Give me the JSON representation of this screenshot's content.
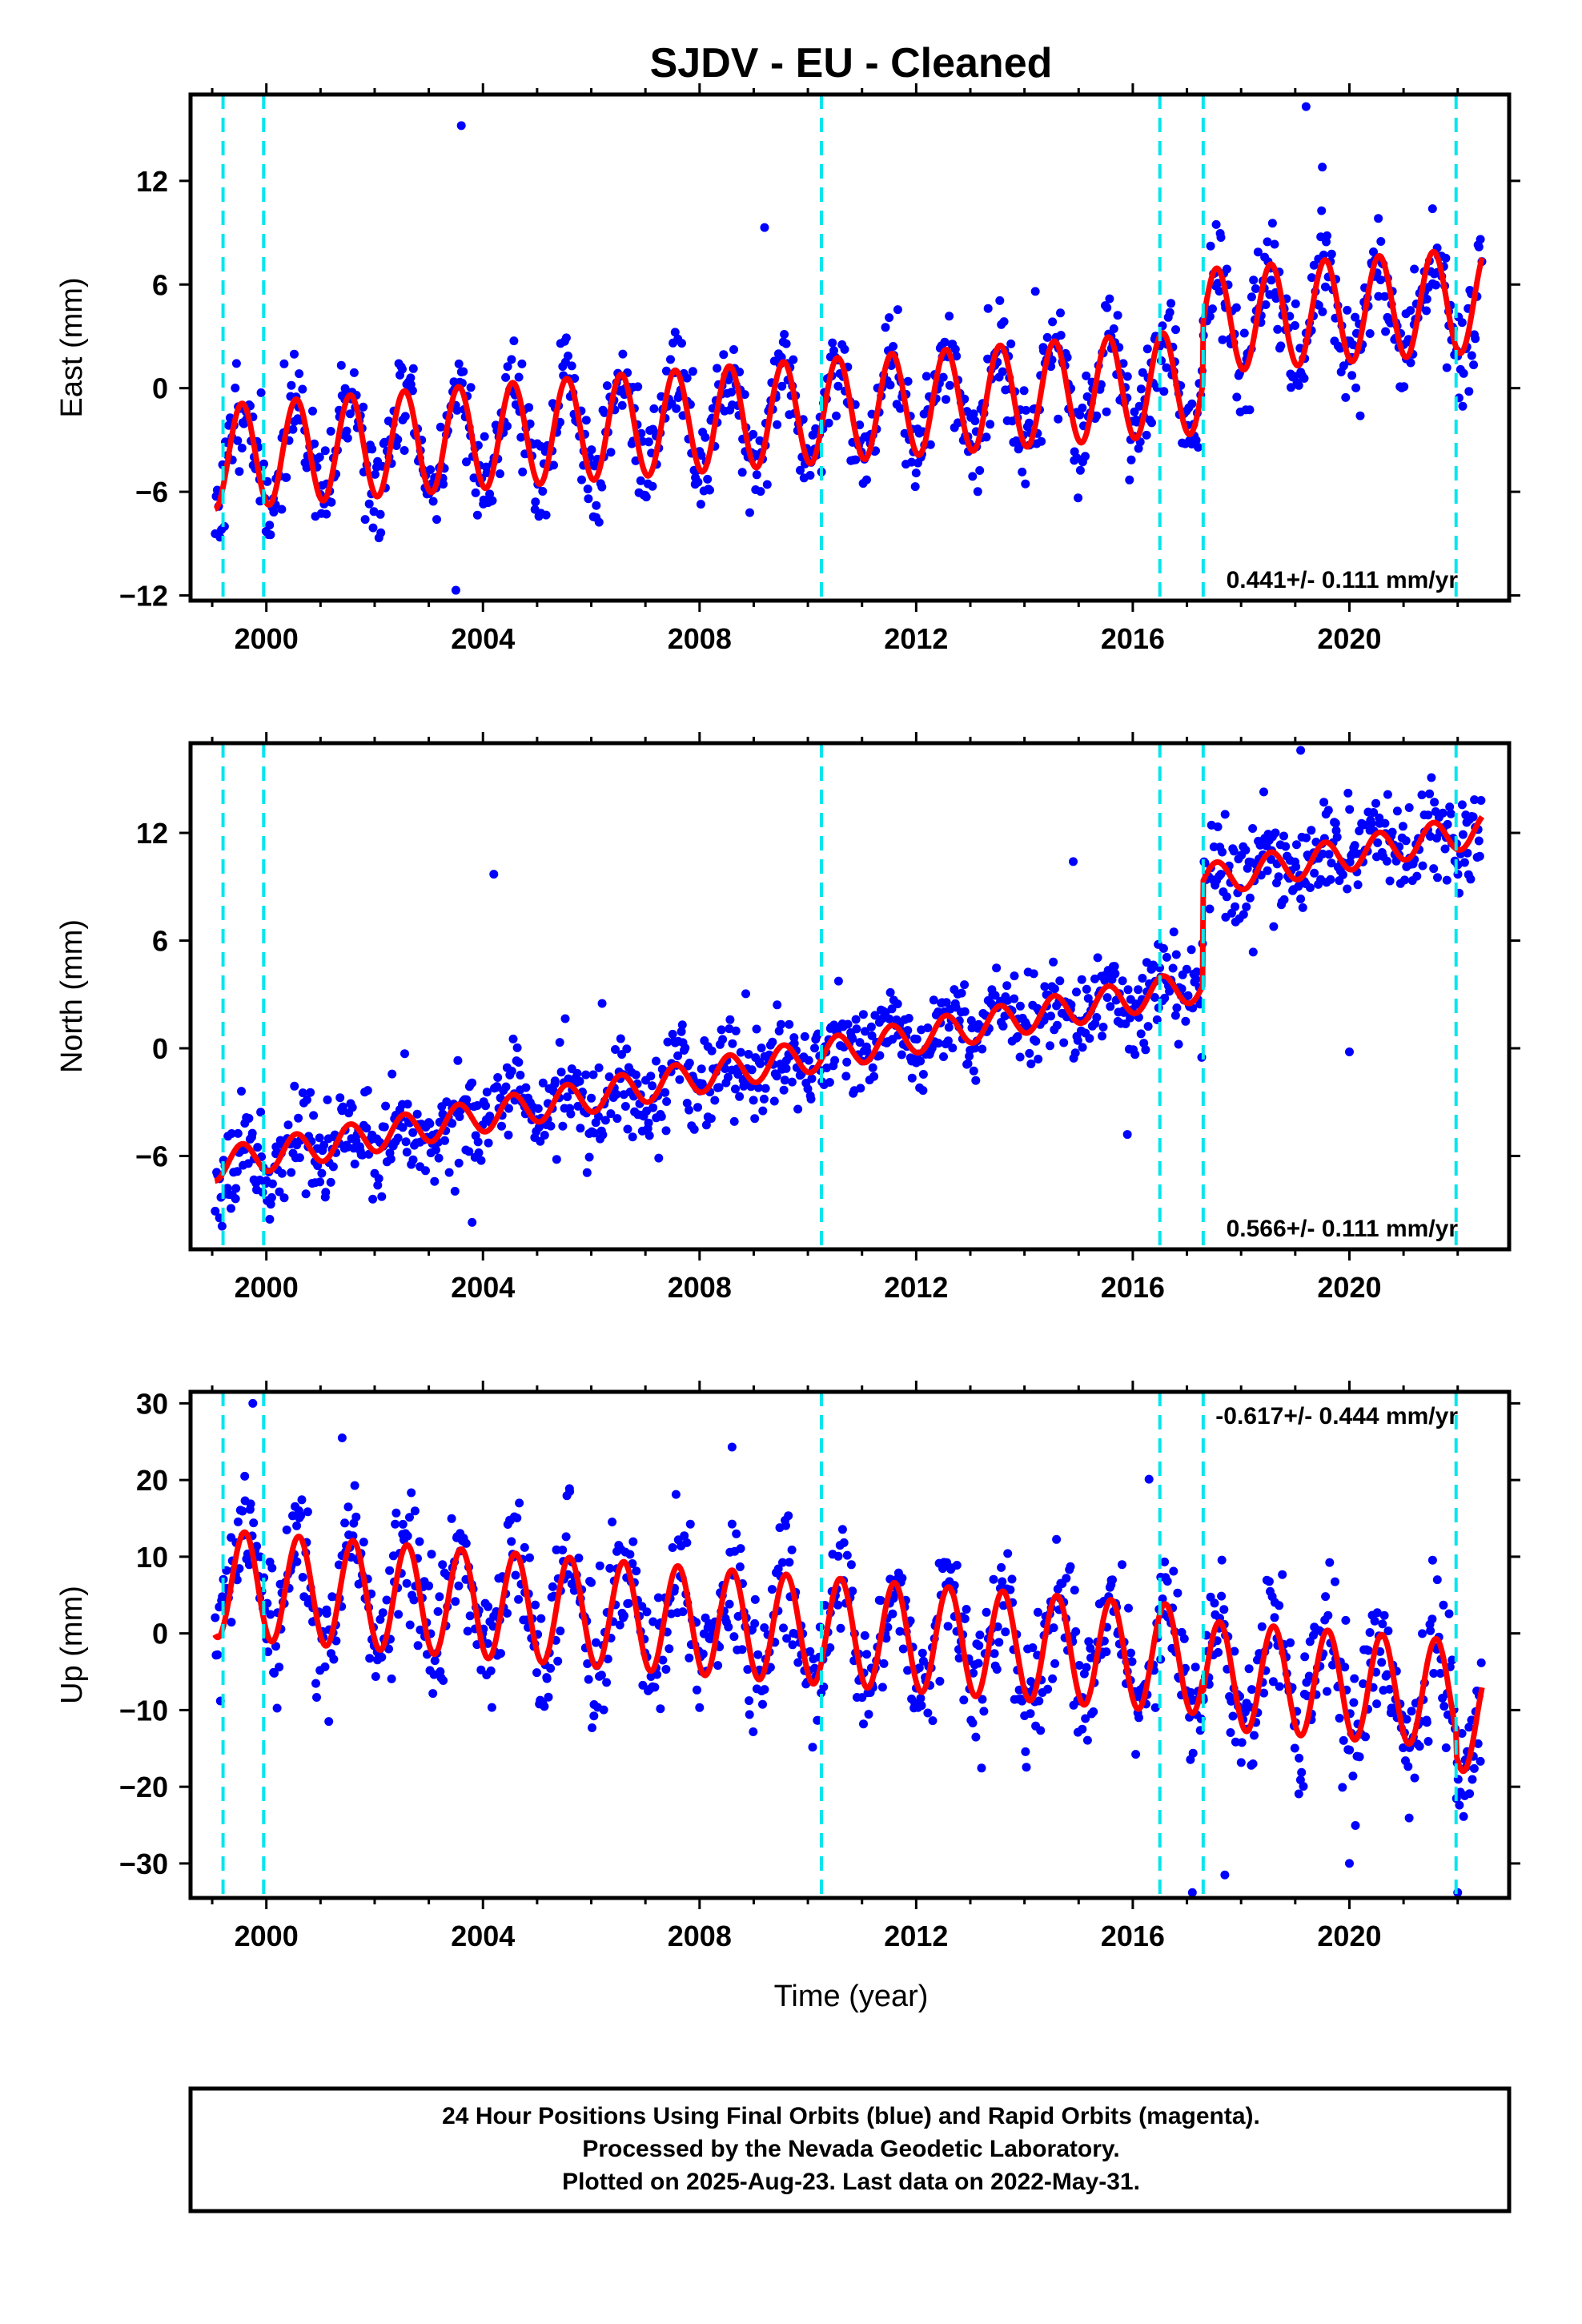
{
  "title": "SJDV  - EU - Cleaned",
  "xlabel": "Time (year)",
  "footer": {
    "line1": "24 Hour Positions Using Final Orbits (blue) and Rapid Orbits (magenta).",
    "line2": "Processed by the Nevada Geodetic Laboratory.",
    "line3": "Plotted on 2025-Aug-23. Last data on 2022-May-31."
  },
  "colors": {
    "points": "#0000ff",
    "model": "#ff0000",
    "steps": "#00e5ee",
    "frame": "#000000"
  },
  "chart_data": [
    {
      "type": "scatter",
      "ylabel": "East (mm)",
      "xlim": [
        1998.6,
        2022.95
      ],
      "ylim": [
        -12.3,
        17
      ],
      "xticks": [
        2000,
        2004,
        2008,
        2012,
        2016,
        2020
      ],
      "xtick_labels": [
        "2000",
        "2004",
        "2008",
        "2012",
        "2016",
        "2020"
      ],
      "yticks": [
        -12,
        -6,
        0,
        6,
        12
      ],
      "ytick_labels": [
        "−12",
        "−6",
        "0",
        "6",
        "12"
      ],
      "rate": "0.441+/- 0.111 mm/yr",
      "rate_position": "bottom-right",
      "step_lines": [
        1999.2,
        1999.95,
        2010.25,
        2016.5,
        2017.3,
        2021.97
      ],
      "model": {
        "start": 1999.05,
        "end": 2022.45,
        "level0": -4.0,
        "trend": 0.24,
        "amplitude": 3.0,
        "peak_phase": 0.55,
        "offsets": [
          {
            "t": 2017.3,
            "dy": 3.5
          }
        ]
      },
      "points": {
        "count": 1100,
        "scatter": 1.5,
        "seed": 11
      },
      "outliers": [
        {
          "x": 2003.6,
          "y": 15.2
        },
        {
          "x": 2009.2,
          "y": 9.3
        },
        {
          "x": 2019.2,
          "y": 16.3
        },
        {
          "x": 2019.5,
          "y": 12.8
        },
        {
          "x": 2003.5,
          "y": -11.7
        },
        {
          "x": 2020.2,
          "y": -1.6
        },
        {
          "x": 2014.2,
          "y": 5.6
        }
      ]
    },
    {
      "type": "scatter",
      "ylabel": "North (mm)",
      "xlim": [
        1998.6,
        2022.95
      ],
      "ylim": [
        -11.2,
        17
      ],
      "xticks": [
        2000,
        2004,
        2008,
        2012,
        2016,
        2020
      ],
      "xtick_labels": [
        "2000",
        "2004",
        "2008",
        "2012",
        "2016",
        "2020"
      ],
      "yticks": [
        -6,
        0,
        6,
        12
      ],
      "ytick_labels": [
        "−6",
        "0",
        "6",
        "12"
      ],
      "rate": "0.566+/- 0.111 mm/yr",
      "rate_position": "bottom-right",
      "step_lines": [
        1999.2,
        1999.95,
        2010.25,
        2016.5,
        2017.3,
        2021.97
      ],
      "model": {
        "start": 1999.05,
        "end": 2022.45,
        "level0": -6.5,
        "trend": 0.55,
        "amplitude": 0.9,
        "peak_phase": 0.55,
        "offsets": [
          {
            "t": 2017.3,
            "dy": 5.8
          }
        ]
      },
      "points": {
        "count": 1100,
        "scatter": 1.3,
        "seed": 23
      },
      "outliers": [
        {
          "x": 2004.2,
          "y": 9.7
        },
        {
          "x": 2006.2,
          "y": 2.5
        },
        {
          "x": 2019.1,
          "y": 16.6
        },
        {
          "x": 2020.0,
          "y": -0.2
        },
        {
          "x": 2015.9,
          "y": -4.8
        },
        {
          "x": 2014.9,
          "y": 10.4
        },
        {
          "x": 2003.8,
          "y": -9.7
        }
      ]
    },
    {
      "type": "scatter",
      "ylabel": "Up (mm)",
      "xlim": [
        1998.6,
        2022.95
      ],
      "ylim": [
        -34.5,
        31.5
      ],
      "xticks": [
        2000,
        2004,
        2008,
        2012,
        2016,
        2020
      ],
      "xtick_labels": [
        "2000",
        "2004",
        "2008",
        "2012",
        "2016",
        "2020"
      ],
      "yticks": [
        -30,
        -20,
        -10,
        0,
        10,
        20,
        30
      ],
      "ytick_labels": [
        "−30",
        "−20",
        "−10",
        "0",
        "10",
        "20",
        "30"
      ],
      "rate": "-0.617+/- 0.444 mm/yr",
      "rate_position": "top-right",
      "step_lines": [
        1999.2,
        1999.95,
        2010.25,
        2016.5,
        2017.3,
        2021.97
      ],
      "model": {
        "start": 1999.05,
        "end": 2022.45,
        "level0": 6.5,
        "trend": -0.55,
        "amplitude": 7.0,
        "peak_phase": 0.6,
        "offsets": [
          {
            "t": 2017.3,
            "dy": -1.8
          },
          {
            "t": 2021.97,
            "dy": -3.0
          }
        ]
      },
      "points": {
        "count": 1100,
        "scatter": 4.2,
        "seed": 37
      },
      "outliers": [
        {
          "x": 1999.75,
          "y": 30.0
        },
        {
          "x": 2001.4,
          "y": 25.5
        },
        {
          "x": 2008.6,
          "y": 24.3
        },
        {
          "x": 2017.7,
          "y": -31.5
        },
        {
          "x": 2017.1,
          "y": -33.8
        },
        {
          "x": 2016.3,
          "y": 20.1
        },
        {
          "x": 2020.0,
          "y": -30.0
        },
        {
          "x": 2022.0,
          "y": -33.8
        }
      ]
    }
  ]
}
